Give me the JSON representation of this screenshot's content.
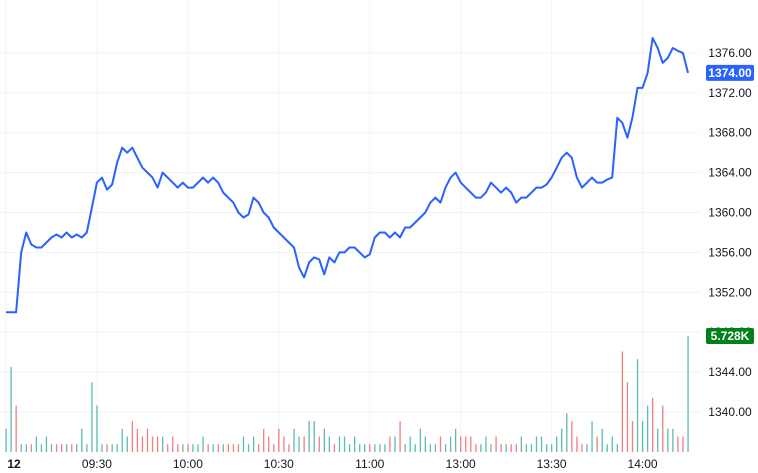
{
  "chart_data": {
    "type": "line",
    "colors": {
      "line": "#2962ff",
      "vol_up": "#26a69a",
      "vol_down": "#ef5350",
      "grid": "#f0f3fa",
      "price_badge": "#2962ff",
      "volume_badge": "#00811e"
    },
    "y_ticks": [
      "1340.00",
      "1344.00",
      "1348.00",
      "1352.00",
      "1356.00",
      "1360.00",
      "1364.00",
      "1368.00",
      "1372.00",
      "1376.00"
    ],
    "ylim": [
      1338.5,
      1378.3
    ],
    "x_ticks": [
      "12",
      "09:30",
      "10:00",
      "10:30",
      "11:00",
      "13:00",
      "13:30",
      "14:00"
    ],
    "x_tick_bars": [
      0,
      18,
      36,
      54,
      72,
      90,
      108,
      126
    ],
    "last_price_label": "1374.00",
    "last_volume_label": "5.728K",
    "series": [
      {
        "values": [
          1350.0,
          1350.0,
          1350.0,
          1356.0,
          1358.0,
          1356.8,
          1356.5,
          1356.5,
          1357.0,
          1357.5,
          1357.8,
          1357.5,
          1358.0,
          1357.5,
          1357.8,
          1357.5,
          1358.0,
          1360.5,
          1363.0,
          1363.5,
          1362.3,
          1362.8,
          1365.0,
          1366.5,
          1366.0,
          1366.5,
          1365.5,
          1364.5,
          1364.0,
          1363.5,
          1362.5,
          1364.0,
          1363.5,
          1363.0,
          1362.5,
          1363.0,
          1362.5,
          1362.5,
          1363.0,
          1363.5,
          1363.0,
          1363.5,
          1363.0,
          1362.0,
          1361.5,
          1361.0,
          1360.0,
          1359.5,
          1359.8,
          1361.5,
          1361.0,
          1360.0,
          1359.5,
          1358.5,
          1358.0,
          1357.5,
          1357.0,
          1356.5,
          1354.5,
          1353.5,
          1355.0,
          1355.5,
          1355.3,
          1353.8,
          1355.5,
          1355.0,
          1356.0,
          1356.0,
          1356.5,
          1356.5,
          1356.0,
          1355.5,
          1355.8,
          1357.5,
          1358.0,
          1358.0,
          1357.5,
          1358.0,
          1357.5,
          1358.5,
          1358.5,
          1359.0,
          1359.5,
          1360.0,
          1361.0,
          1361.5,
          1361.0,
          1362.5,
          1363.5,
          1364.0,
          1363.0,
          1362.5,
          1362.0,
          1361.5,
          1361.5,
          1362.0,
          1363.0,
          1362.5,
          1362.0,
          1362.5,
          1362.0,
          1361.0,
          1361.5,
          1361.5,
          1362.0,
          1362.5,
          1362.5,
          1362.8,
          1363.5,
          1364.5,
          1365.5,
          1366.0,
          1365.5,
          1363.5,
          1362.5,
          1363.0,
          1363.5,
          1363.0,
          1363.0,
          1363.3,
          1363.5,
          1369.5,
          1369.0,
          1367.5,
          1369.5,
          1372.5,
          1372.5,
          1374.0,
          1377.5,
          1376.5,
          1375.0,
          1375.5,
          1376.5,
          1376.2,
          1376.0,
          1374.0
        ]
      }
    ],
    "volume": [
      3,
      11,
      6,
      1,
      1,
      1,
      2,
      1,
      2,
      1,
      1,
      1,
      1,
      1,
      1,
      3,
      1,
      9,
      6,
      1,
      1,
      1,
      1,
      3,
      2,
      4,
      3,
      2,
      3,
      2,
      2,
      2,
      1,
      2,
      1,
      1,
      1,
      1,
      1,
      2,
      1,
      1,
      1,
      1,
      1,
      1,
      1,
      2,
      1,
      2,
      1,
      3,
      2,
      1,
      3,
      2,
      1,
      3,
      2,
      2,
      4,
      4,
      2,
      3,
      2,
      1,
      2,
      2,
      1,
      2,
      1,
      1,
      1,
      1,
      1,
      1,
      2,
      2,
      4,
      1,
      2,
      1,
      3,
      2,
      1,
      1,
      2,
      1,
      2,
      3,
      2,
      2,
      2,
      1,
      1,
      2,
      1,
      2,
      1,
      1,
      1,
      1,
      2,
      1,
      1,
      2,
      2,
      1,
      1,
      2,
      3,
      5,
      4,
      2,
      1,
      1,
      4,
      2,
      3,
      1,
      2,
      1,
      13,
      9,
      4,
      12,
      4,
      6,
      7,
      3,
      6,
      3,
      3,
      2,
      2,
      15
    ],
    "volume_up": [
      1,
      1,
      0,
      1,
      1,
      0,
      1,
      1,
      1,
      1,
      0,
      0,
      1,
      0,
      1,
      1,
      1,
      1,
      1,
      1,
      0,
      1,
      1,
      1,
      1,
      0,
      0,
      0,
      0,
      0,
      0,
      1,
      0,
      0,
      0,
      1,
      0,
      1,
      1,
      1,
      0,
      1,
      0,
      1,
      0,
      0,
      0,
      1,
      1,
      1,
      0,
      0,
      0,
      0,
      0,
      0,
      0,
      1,
      1,
      0,
      1,
      1,
      0,
      1,
      1,
      0,
      1,
      1,
      1,
      1,
      1,
      1,
      0,
      1,
      1,
      1,
      0,
      1,
      0,
      1,
      1,
      1,
      1,
      1,
      1,
      1,
      0,
      1,
      1,
      1,
      0,
      0,
      0,
      0,
      1,
      1,
      1,
      0,
      0,
      1,
      0,
      0,
      1,
      1,
      1,
      1,
      1,
      1,
      1,
      1,
      1,
      1,
      0,
      0,
      0,
      1,
      1,
      0,
      1,
      1,
      1,
      1,
      0,
      0,
      0,
      1,
      1,
      1,
      0,
      1,
      0,
      1,
      1,
      0,
      0,
      1
    ]
  }
}
